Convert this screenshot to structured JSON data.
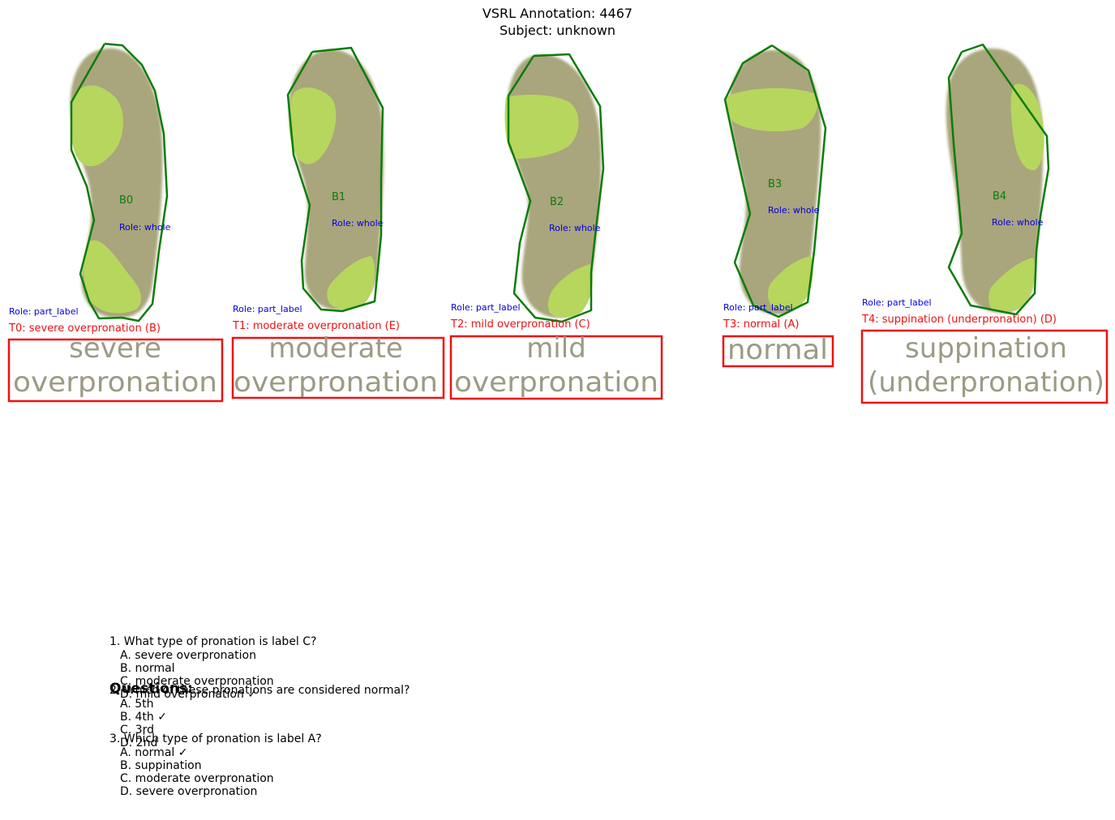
{
  "header": {
    "title": "VSRL Annotation: 4467",
    "subject": "Subject: unknown"
  },
  "colors": {
    "outline": "#0a7d0a",
    "label_box": "#ee1111",
    "role_text": "#0000dd",
    "foot_base": "#a9a57c",
    "foot_highlight": "#b6d65e"
  },
  "blobs": [
    {
      "label": "B0",
      "role": "Role: whole"
    },
    {
      "label": "B1",
      "role": "Role: whole"
    },
    {
      "label": "B2",
      "role": "Role: whole"
    },
    {
      "label": "B3",
      "role": "Role: whole"
    },
    {
      "label": "B4",
      "role": "Role: whole"
    }
  ],
  "text_labels": [
    {
      "id": "T0: severe overpronation (B)",
      "role": "Role: part_label",
      "lines": [
        "severe",
        "overpronation"
      ]
    },
    {
      "id": "T1: moderate overpronation (E)",
      "role": "Role: part_label",
      "lines": [
        "moderate",
        "overpronation"
      ]
    },
    {
      "id": "T2: mild overpronation (C)",
      "role": "Role: part_label",
      "lines": [
        "mild",
        "overpronation"
      ]
    },
    {
      "id": "T3: normal (A)",
      "role": "Role: part_label",
      "lines": [
        "normal"
      ]
    },
    {
      "id": "T4: suppination (underpronation) (D)",
      "role": "Role: part_label",
      "lines": [
        "suppination",
        "(underpronation)"
      ]
    }
  ],
  "questions": {
    "heading": "Questions:",
    "items": [
      {
        "question": "1. What type of pronation is label C?",
        "options": [
          "A. severe overpronation",
          "B. normal",
          "C. moderate overpronation",
          "D. mild overpronation ✓"
        ]
      },
      {
        "question": "2. Which of these pronations are considered normal?",
        "options": [
          "A. 5th",
          "B. 4th ✓",
          "C. 3rd",
          "D. 2nd"
        ]
      },
      {
        "question": "3. Which type of pronation is label A?",
        "options": [
          "A. normal ✓",
          "B. suppination",
          "C. moderate overpronation",
          "D. severe overpronation"
        ]
      }
    ]
  }
}
